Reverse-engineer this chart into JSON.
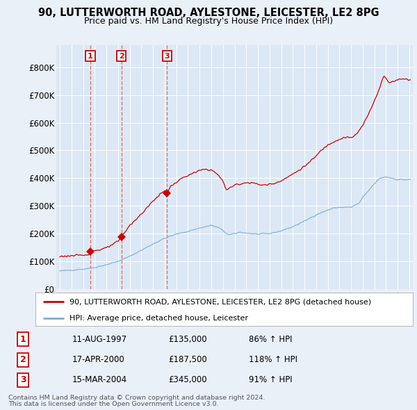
{
  "title": "90, LUTTERWORTH ROAD, AYLESTONE, LEICESTER, LE2 8PG",
  "subtitle": "Price paid vs. HM Land Registry's House Price Index (HPI)",
  "legend_property": "90, LUTTERWORTH ROAD, AYLESTONE, LEICESTER, LE2 8PG (detached house)",
  "legend_hpi": "HPI: Average price, detached house, Leicester",
  "footer1": "Contains HM Land Registry data © Crown copyright and database right 2024.",
  "footer2": "This data is licensed under the Open Government Licence v3.0.",
  "ylim": [
    0,
    880000
  ],
  "yticks": [
    0,
    100000,
    200000,
    300000,
    400000,
    500000,
    600000,
    700000,
    800000
  ],
  "ytick_labels": [
    "£0",
    "£100K",
    "£200K",
    "£300K",
    "£400K",
    "£500K",
    "£600K",
    "£700K",
    "£800K"
  ],
  "xlim_start": 1994.7,
  "xlim_end": 2025.3,
  "sale_points": [
    {
      "num": 1,
      "year": 1997.62,
      "price": 135000,
      "date": "11-AUG-1997",
      "pct": "86%",
      "direction": "↑"
    },
    {
      "num": 2,
      "year": 2000.29,
      "price": 187500,
      "date": "17-APR-2000",
      "pct": "118%",
      "direction": "↑"
    },
    {
      "num": 3,
      "year": 2004.21,
      "price": 345000,
      "date": "15-MAR-2004",
      "pct": "91%",
      "direction": "↑"
    }
  ],
  "property_color": "#cc0000",
  "hpi_color": "#7dadd4",
  "dashed_color": "#e06060",
  "background_color": "#eaf0f8",
  "plot_bg": "#dce8f5",
  "grid_color": "#ffffff"
}
